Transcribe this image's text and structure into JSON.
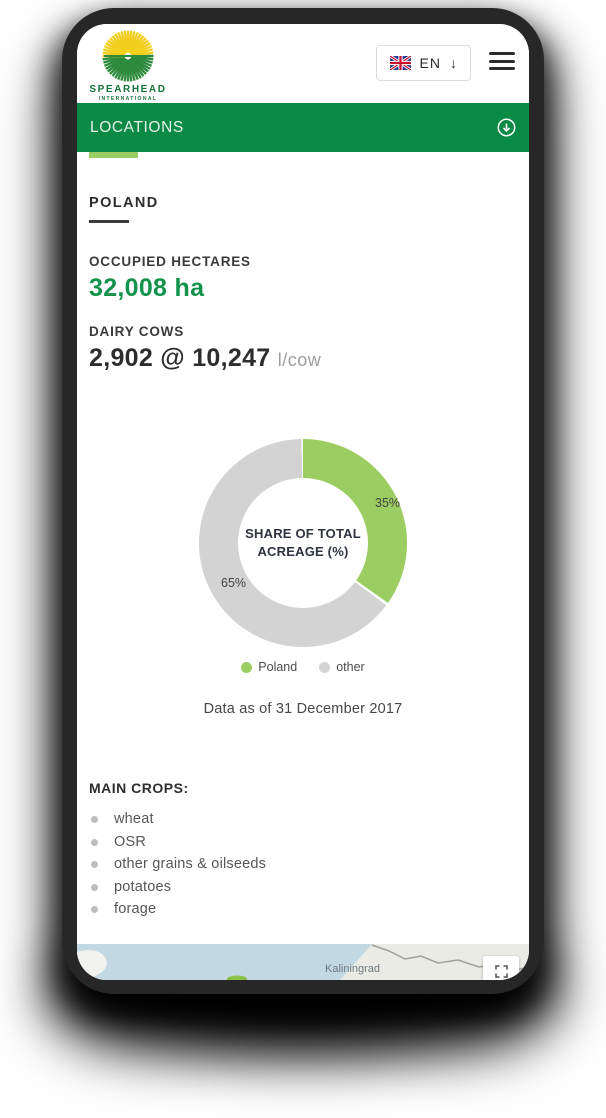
{
  "header": {
    "brand": "SPEARHEAD",
    "brand_sub": "INTERNATIONAL",
    "language": {
      "label": "EN",
      "arrow": "↓"
    }
  },
  "section_bar": {
    "title": "LOCATIONS"
  },
  "country": {
    "name": "POLAND"
  },
  "stats": {
    "hectares_label": "OCCUPIED HECTARES",
    "hectares_value": "32,008 ha",
    "cows_label": "DAIRY COWS",
    "cows_value": "2,902 @ 10,247",
    "cows_unit": "l/cow"
  },
  "chart_data": {
    "type": "pie",
    "donut": true,
    "title": "SHARE OF TOTAL ACREAGE (%)",
    "slices": [
      {
        "label": "Poland",
        "value": 35,
        "pct": "35%",
        "color": "#9ccd62"
      },
      {
        "label": "other",
        "value": 65,
        "pct": "65%",
        "color": "#d3d3d3"
      }
    ],
    "start_angle_deg": 0,
    "direction": "clockwise",
    "legend_position": "bottom"
  },
  "note": "Data as of 31 December 2017",
  "main_crops": {
    "title": "MAIN CROPS:",
    "items": [
      "wheat",
      "OSR",
      "other grains & oilseeds",
      "potatoes",
      "forage"
    ]
  },
  "map": {
    "city_label": "Kaliningrad"
  },
  "colors": {
    "section_green": "#0a8a45",
    "accent_light_green": "#9ccd62",
    "value_green": "#12924a",
    "sea": "#c2d8e2",
    "land": "#ebebe6"
  }
}
